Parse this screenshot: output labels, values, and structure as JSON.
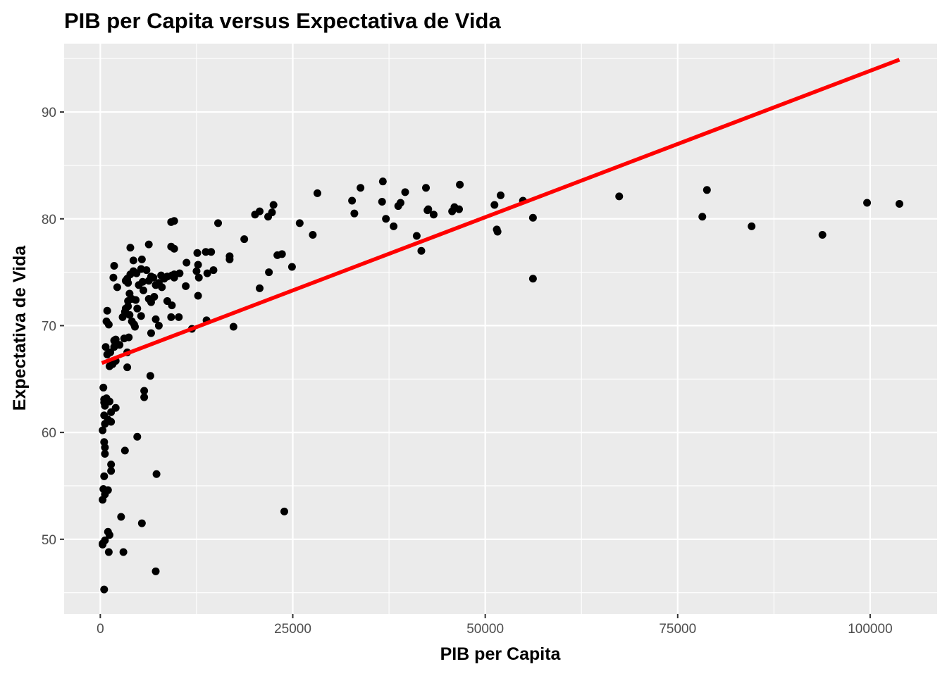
{
  "chart_data": {
    "type": "scatter",
    "title": "PIB per Capita versus Expectativa de Vida",
    "xlabel": "PIB per Capita",
    "ylabel": "Expectativa de Vida",
    "xlim": [
      -4700,
      108700
    ],
    "ylim": [
      43.0,
      96.4
    ],
    "x_ticks": [
      0,
      25000,
      50000,
      75000,
      100000
    ],
    "x_tick_labels": [
      "0",
      "25000",
      "50000",
      "75000",
      "100000"
    ],
    "y_ticks": [
      50,
      60,
      70,
      80,
      90
    ],
    "y_tick_labels": [
      "50",
      "60",
      "70",
      "80",
      "90"
    ],
    "grid": true,
    "colors": {
      "panel": "#ebebeb",
      "grid": "#ffffff",
      "points": "#000000",
      "line": "#ff0000"
    },
    "trend_line": {
      "x": [
        200,
        103800
      ],
      "y": [
        66.5,
        94.9
      ]
    },
    "points": [
      [
        500,
        45.3
      ],
      [
        7200,
        47.0
      ],
      [
        1100,
        48.8
      ],
      [
        3000,
        48.8
      ],
      [
        300,
        49.6
      ],
      [
        600,
        49.9
      ],
      [
        300,
        49.5
      ],
      [
        1000,
        50.7
      ],
      [
        1200,
        50.4
      ],
      [
        5400,
        51.5
      ],
      [
        2700,
        52.1
      ],
      [
        23900,
        52.6
      ],
      [
        300,
        53.7
      ],
      [
        600,
        54.2
      ],
      [
        400,
        54.7
      ],
      [
        1000,
        54.6
      ],
      [
        500,
        55.9
      ],
      [
        7300,
        56.1
      ],
      [
        1400,
        56.4
      ],
      [
        1400,
        57.0
      ],
      [
        600,
        58.0
      ],
      [
        600,
        58.6
      ],
      [
        500,
        59.1
      ],
      [
        4800,
        59.6
      ],
      [
        3200,
        58.3
      ],
      [
        300,
        60.2
      ],
      [
        600,
        60.8
      ],
      [
        1400,
        61.0
      ],
      [
        1000,
        61.2
      ],
      [
        500,
        61.6
      ],
      [
        1400,
        61.9
      ],
      [
        2000,
        62.3
      ],
      [
        600,
        62.5
      ],
      [
        1200,
        62.9
      ],
      [
        500,
        63.1
      ],
      [
        800,
        63.2
      ],
      [
        5700,
        63.3
      ],
      [
        5700,
        63.9
      ],
      [
        6500,
        65.3
      ],
      [
        400,
        64.2
      ],
      [
        500,
        62.8
      ],
      [
        3500,
        66.1
      ],
      [
        1200,
        66.2
      ],
      [
        1600,
        66.4
      ],
      [
        2000,
        66.7
      ],
      [
        900,
        67.3
      ],
      [
        1300,
        67.5
      ],
      [
        3500,
        67.5
      ],
      [
        1800,
        68.0
      ],
      [
        700,
        68.0
      ],
      [
        2500,
        68.2
      ],
      [
        1800,
        68.6
      ],
      [
        2000,
        68.7
      ],
      [
        3700,
        68.9
      ],
      [
        3100,
        68.8
      ],
      [
        4500,
        69.9
      ],
      [
        4400,
        70.1
      ],
      [
        800,
        70.4
      ],
      [
        1100,
        70.1
      ],
      [
        900,
        71.4
      ],
      [
        3200,
        71.3
      ],
      [
        3300,
        71.6
      ],
      [
        3600,
        71.8
      ],
      [
        3800,
        71.0
      ],
      [
        2900,
        70.8
      ],
      [
        4100,
        70.4
      ],
      [
        4800,
        71.6
      ],
      [
        5300,
        70.9
      ],
      [
        6600,
        69.3
      ],
      [
        7200,
        70.6
      ],
      [
        7600,
        70.0
      ],
      [
        9200,
        70.8
      ],
      [
        10200,
        70.8
      ],
      [
        11900,
        69.7
      ],
      [
        13800,
        70.5
      ],
      [
        17300,
        69.9
      ],
      [
        3600,
        72.3
      ],
      [
        3800,
        73.0
      ],
      [
        4100,
        72.5
      ],
      [
        4600,
        72.4
      ],
      [
        5600,
        73.3
      ],
      [
        6300,
        72.5
      ],
      [
        6600,
        72.2
      ],
      [
        7000,
        72.7
      ],
      [
        8700,
        72.3
      ],
      [
        9300,
        71.9
      ],
      [
        12700,
        72.8
      ],
      [
        2200,
        73.6
      ],
      [
        3300,
        74.2
      ],
      [
        3500,
        74.4
      ],
      [
        3600,
        74.0
      ],
      [
        3900,
        74.8
      ],
      [
        4300,
        75.1
      ],
      [
        4700,
        74.9
      ],
      [
        5000,
        73.8
      ],
      [
        5300,
        75.3
      ],
      [
        5500,
        74.1
      ],
      [
        6000,
        75.2
      ],
      [
        6300,
        74.2
      ],
      [
        6600,
        74.6
      ],
      [
        6900,
        74.5
      ],
      [
        7200,
        73.8
      ],
      [
        7600,
        74.0
      ],
      [
        8000,
        73.6
      ],
      [
        8300,
        74.4
      ],
      [
        8700,
        74.6
      ],
      [
        9300,
        74.7
      ],
      [
        9600,
        74.5
      ],
      [
        10300,
        74.9
      ],
      [
        11100,
        73.7
      ],
      [
        12500,
        75.1
      ],
      [
        12800,
        74.5
      ],
      [
        13900,
        74.9
      ],
      [
        14700,
        75.2
      ],
      [
        20700,
        73.5
      ],
      [
        21900,
        75.0
      ],
      [
        24900,
        75.5
      ],
      [
        1700,
        74.5
      ],
      [
        1800,
        75.6
      ],
      [
        4300,
        76.1
      ],
      [
        5400,
        76.2
      ],
      [
        7900,
        74.7
      ],
      [
        9600,
        74.8
      ],
      [
        11200,
        75.9
      ],
      [
        12700,
        75.7
      ],
      [
        14400,
        76.9
      ],
      [
        16800,
        76.2
      ],
      [
        16800,
        76.5
      ],
      [
        3900,
        77.3
      ],
      [
        6300,
        77.6
      ],
      [
        9200,
        77.4
      ],
      [
        9600,
        77.2
      ],
      [
        12600,
        76.8
      ],
      [
        13700,
        76.9
      ],
      [
        18700,
        78.1
      ],
      [
        23000,
        76.6
      ],
      [
        23600,
        76.7
      ],
      [
        41700,
        77.0
      ],
      [
        9200,
        79.7
      ],
      [
        9600,
        79.8
      ],
      [
        15300,
        79.6
      ],
      [
        20100,
        80.4
      ],
      [
        20700,
        80.7
      ],
      [
        21800,
        80.2
      ],
      [
        22300,
        80.6
      ],
      [
        22500,
        81.3
      ],
      [
        25900,
        79.6
      ],
      [
        27600,
        78.5
      ],
      [
        28200,
        82.4
      ],
      [
        32700,
        81.7
      ],
      [
        33000,
        80.5
      ],
      [
        33800,
        82.9
      ],
      [
        36600,
        81.6
      ],
      [
        36700,
        83.5
      ],
      [
        37100,
        80.0
      ],
      [
        38100,
        79.3
      ],
      [
        38700,
        81.2
      ],
      [
        39000,
        81.5
      ],
      [
        39600,
        82.5
      ],
      [
        41100,
        78.4
      ],
      [
        42300,
        82.9
      ],
      [
        42500,
        80.8
      ],
      [
        42600,
        80.9
      ],
      [
        43300,
        80.4
      ],
      [
        45700,
        80.7
      ],
      [
        46000,
        81.1
      ],
      [
        46600,
        80.9
      ],
      [
        46700,
        83.2
      ],
      [
        51200,
        81.3
      ],
      [
        51500,
        79.0
      ],
      [
        51600,
        78.8
      ],
      [
        52000,
        82.2
      ],
      [
        54900,
        81.7
      ],
      [
        56200,
        80.1
      ],
      [
        56200,
        74.4
      ],
      [
        67400,
        82.1
      ],
      [
        78200,
        80.2
      ],
      [
        78800,
        82.7
      ],
      [
        84600,
        79.3
      ],
      [
        93800,
        78.5
      ],
      [
        99600,
        81.5
      ],
      [
        103800,
        81.4
      ]
    ]
  }
}
